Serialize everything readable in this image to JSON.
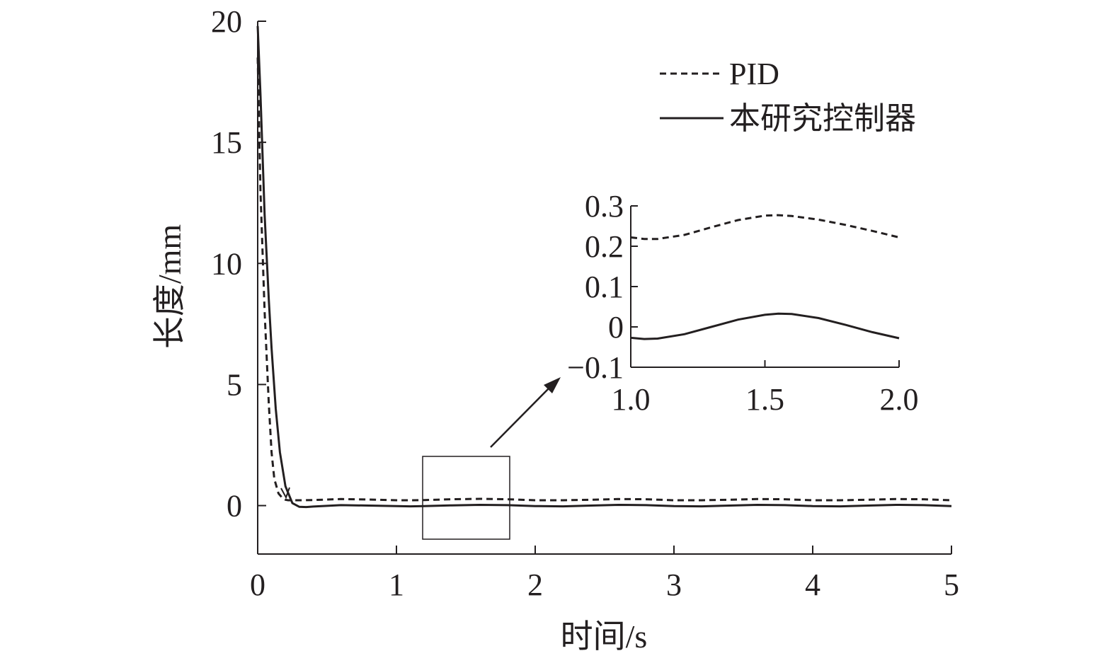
{
  "chart_data": [
    {
      "id": "main",
      "type": "line",
      "xlabel": "时间/s",
      "ylabel": "长度/mm",
      "xlim": [
        0,
        5
      ],
      "ylim": [
        -2,
        20
      ],
      "xticks": [
        "0",
        "1",
        "2",
        "3",
        "4",
        "5"
      ],
      "yticks": [
        "0",
        "5",
        "10",
        "15",
        "20"
      ],
      "legend": {
        "position": "top-right"
      },
      "series": [
        {
          "name": "PID",
          "style": "dashed",
          "x": [
            0,
            0.02,
            0.05,
            0.08,
            0.1,
            0.12,
            0.15,
            0.18,
            0.2,
            0.22,
            0.25,
            0.3,
            0.4,
            0.6,
            0.8,
            1.0,
            1.1,
            1.2,
            1.4,
            1.6,
            1.8,
            2.0,
            2.2,
            2.4,
            2.6,
            2.8,
            3.0,
            3.2,
            3.4,
            3.6,
            3.8,
            4.0,
            4.2,
            4.4,
            4.6,
            4.8,
            5.0
          ],
          "y": [
            18.5,
            13.0,
            8.0,
            4.2,
            2.2,
            1.1,
            0.5,
            0.3,
            0.24,
            0.22,
            0.22,
            0.22,
            0.23,
            0.27,
            0.25,
            0.22,
            0.22,
            0.23,
            0.26,
            0.28,
            0.26,
            0.22,
            0.22,
            0.24,
            0.27,
            0.26,
            0.22,
            0.22,
            0.24,
            0.27,
            0.26,
            0.22,
            0.22,
            0.24,
            0.27,
            0.26,
            0.22
          ]
        },
        {
          "name": "本研究控制器",
          "style": "solid",
          "x": [
            0,
            0.02,
            0.05,
            0.08,
            0.1,
            0.13,
            0.16,
            0.2,
            0.25,
            0.3,
            0.35,
            0.4,
            0.6,
            0.8,
            1.0,
            1.1,
            1.2,
            1.4,
            1.6,
            1.8,
            2.0,
            2.2,
            2.4,
            2.6,
            2.8,
            3.0,
            3.2,
            3.4,
            3.6,
            3.8,
            4.0,
            4.2,
            4.4,
            4.6,
            4.8,
            5.0
          ],
          "y": [
            19.8,
            17.0,
            12.0,
            8.5,
            6.5,
            4.0,
            2.2,
            0.8,
            0.1,
            -0.05,
            -0.06,
            -0.04,
            0.02,
            0.0,
            -0.02,
            -0.03,
            -0.02,
            0.01,
            0.03,
            0.02,
            -0.02,
            -0.03,
            0.0,
            0.03,
            0.02,
            -0.02,
            -0.03,
            0.0,
            0.03,
            0.02,
            -0.02,
            -0.03,
            0.0,
            0.03,
            0.02,
            -0.02
          ]
        }
      ]
    },
    {
      "id": "inset",
      "type": "line",
      "xlim": [
        1.0,
        2.0
      ],
      "ylim": [
        -0.1,
        0.3
      ],
      "xticks": [
        "1.0",
        "1.5",
        "2.0"
      ],
      "yticks": [
        "−0.1",
        "0",
        "0.1",
        "0.2",
        "0.3"
      ],
      "series": [
        {
          "name": "PID",
          "style": "dashed",
          "x": [
            1.0,
            1.05,
            1.1,
            1.2,
            1.3,
            1.4,
            1.5,
            1.55,
            1.6,
            1.7,
            1.8,
            1.9,
            2.0
          ],
          "y": [
            0.222,
            0.218,
            0.218,
            0.228,
            0.247,
            0.265,
            0.276,
            0.277,
            0.275,
            0.266,
            0.253,
            0.238,
            0.222
          ]
        },
        {
          "name": "本研究控制器",
          "style": "solid",
          "x": [
            1.0,
            1.05,
            1.1,
            1.2,
            1.3,
            1.4,
            1.5,
            1.55,
            1.6,
            1.7,
            1.8,
            1.9,
            2.0
          ],
          "y": [
            -0.027,
            -0.03,
            -0.029,
            -0.018,
            0.0,
            0.018,
            0.03,
            0.033,
            0.032,
            0.022,
            0.005,
            -0.013,
            -0.028
          ]
        }
      ]
    }
  ]
}
